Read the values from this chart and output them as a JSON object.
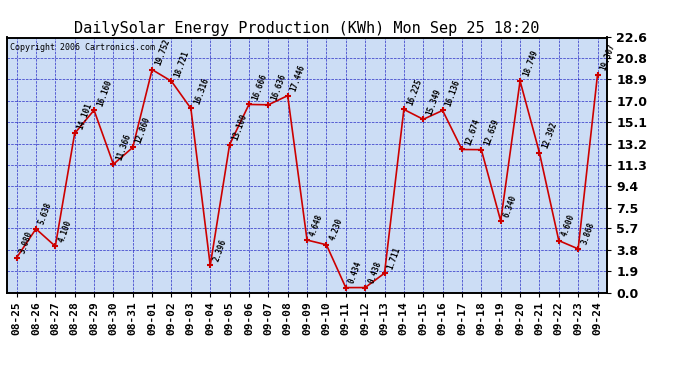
{
  "title": "DailySolar Energy Production (KWh) Mon Sep 25 18:20",
  "copyright": "Copyright 2006 Cartronics.com",
  "dates": [
    "08-25",
    "08-26",
    "08-27",
    "08-28",
    "08-29",
    "08-30",
    "08-31",
    "09-01",
    "09-02",
    "09-03",
    "09-04",
    "09-05",
    "09-06",
    "09-07",
    "09-08",
    "09-09",
    "09-10",
    "09-11",
    "09-12",
    "09-13",
    "09-14",
    "09-15",
    "09-16",
    "09-17",
    "09-18",
    "09-19",
    "09-20",
    "09-21",
    "09-22",
    "09-23",
    "09-24"
  ],
  "values": [
    3.08,
    5.638,
    4.1,
    14.101,
    16.16,
    11.366,
    12.86,
    19.752,
    18.721,
    16.316,
    2.396,
    13.1,
    16.666,
    16.636,
    17.446,
    4.648,
    4.23,
    0.434,
    0.438,
    1.711,
    16.225,
    15.349,
    16.136,
    12.674,
    12.659,
    6.34,
    18.749,
    12.392,
    4.6,
    3.868,
    19.307
  ],
  "ylim": [
    0.0,
    22.6
  ],
  "yticks": [
    0.0,
    1.9,
    3.8,
    5.7,
    7.5,
    9.4,
    11.3,
    13.2,
    15.1,
    17.0,
    18.9,
    20.8,
    22.6
  ],
  "ytick_labels": [
    "0.0",
    "1.9",
    "3.8",
    "5.7",
    "7.5",
    "9.4",
    "11.3",
    "13.2",
    "15.1",
    "17.0",
    "18.9",
    "20.8",
    "22.6"
  ],
  "line_color": "#CC0000",
  "marker_color": "#CC0000",
  "bg_color": "#FFFFFF",
  "plot_bg_color": "#CCDDF5",
  "grid_color": "#0000BB",
  "title_color": "black",
  "label_color": "black",
  "border_color": "black",
  "title_fontsize": 11,
  "tick_fontsize": 8,
  "annot_fontsize": 5.5,
  "copyright_fontsize": 6
}
